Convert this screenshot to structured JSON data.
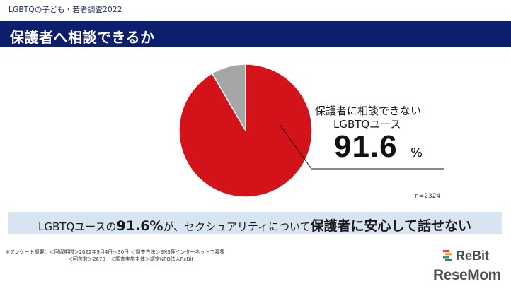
{
  "header": {
    "survey_label": "LGBTQの子ども・若者調査2022",
    "title": "保護者へ相談できるか"
  },
  "colors": {
    "title_bar": "#0b1f6e",
    "slice_main": "#d4121a",
    "slice_rest": "#a6a6a6",
    "summary_bg": "#d9e4f3"
  },
  "chart_data": {
    "type": "pie",
    "slices": [
      {
        "label": "保護者に相談できないLGBTQユース",
        "value": 91.6,
        "color": "#d4121a"
      },
      {
        "label": "",
        "value": 8.4,
        "color": "#a6a6a6"
      }
    ],
    "callout": {
      "label_line1": "保護者に相談できない",
      "label_line2": "LGBTQユース",
      "value": "91.6",
      "unit": "%"
    },
    "sample_size": "n=2324"
  },
  "summary": {
    "part1": "LGBTQユースの",
    "part2": "91.6%",
    "part3": "が、セクシュアリティについて",
    "part4": "保護者に安心して話せない"
  },
  "footnote": {
    "line1": "※アンケート概要：＜回収期間＞2022年9月4日〜30日 ＜調査方法＞SNS等インターネットで募集",
    "line2": "＜回答数＞2670　＜調査実施主体＞認定NPO法人ReBit"
  },
  "logos": {
    "rebit": "ReBit",
    "resemom": "ReseMom"
  }
}
